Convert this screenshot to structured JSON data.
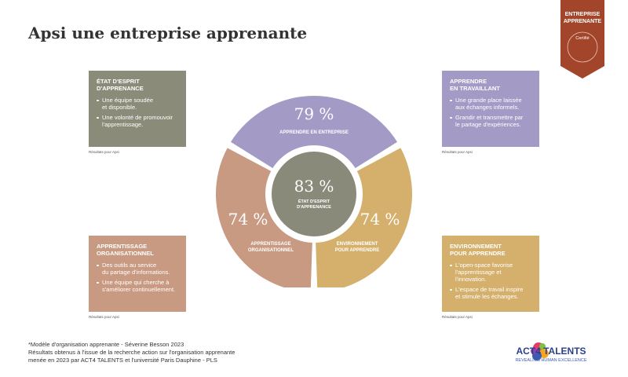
{
  "header": {
    "title": "Apsi une entreprise apprenante"
  },
  "badge": {
    "lines": [
      "ENTREPRISE",
      "APPRENANTE"
    ],
    "label": "Certifié"
  },
  "boxes": [
    {
      "title": [
        "ÉTAT D'ESPRIT",
        "D'APPRENANCE"
      ],
      "bullets": [
        [
          "Une équipe soudée",
          "et disponible."
        ],
        [
          "Une volonté de promouvoir",
          "l'apprentissage."
        ]
      ],
      "caption": "Résultats pour Apsi"
    },
    {
      "title": [
        "APPRENDRE",
        "EN TRAVAILLANT"
      ],
      "bullets": [
        [
          "Une grande place laissée",
          "aux échanges informels."
        ],
        [
          "Grandir et transmettre par",
          "le partage d'expériences."
        ]
      ],
      "caption": "Résultats pour Apsi"
    },
    {
      "title": [
        "APPRENTISSAGE",
        "ORGANISATIONNEL"
      ],
      "bullets": [
        [
          "Des outils au service",
          "du partage d'informations."
        ],
        [
          "Une équipe qui cherche à",
          "s'améliorer continuellement."
        ]
      ],
      "caption": "Résultats pour Apsi"
    },
    {
      "title": [
        "ENVIRONNEMENT",
        "POUR APPRENDRE"
      ],
      "bullets": [
        [
          "L'open-space favorise",
          "l'apprentissage et",
          "l'innovation."
        ],
        [
          "L'espace de travail inspire",
          "et stimule les échanges."
        ]
      ],
      "caption": "Résultats pour Apsi"
    }
  ],
  "diagram": {
    "center": {
      "value": "83 %",
      "label": [
        "ÉTAT D'ESPRIT",
        "D'APPRENANCE"
      ]
    },
    "segments": [
      {
        "value": "79 %",
        "label": [
          "APPRENDRE EN ENTREPRISE"
        ]
      },
      {
        "value": "74 %",
        "label": [
          "APPRENTISSAGE",
          "ORGANISATIONNEL"
        ]
      },
      {
        "value": "74 %",
        "label": [
          "ENVIRONNEMENT",
          "POUR APPRENDRE"
        ]
      }
    ]
  },
  "footnote": [
    "*Modèle d'organisation apprenante - Séverine Besson 2023",
    "Résultats obtenus à l'issue de la recherche action sur l'organisation apprenante",
    "menée en 2023 par ACT4 TALENTS et l'université Paris Dauphine - PLS"
  ],
  "logo": {
    "name": "ACT4 TALENTS",
    "tagline": "REVEALING HUMAN EXCELLENCE"
  }
}
